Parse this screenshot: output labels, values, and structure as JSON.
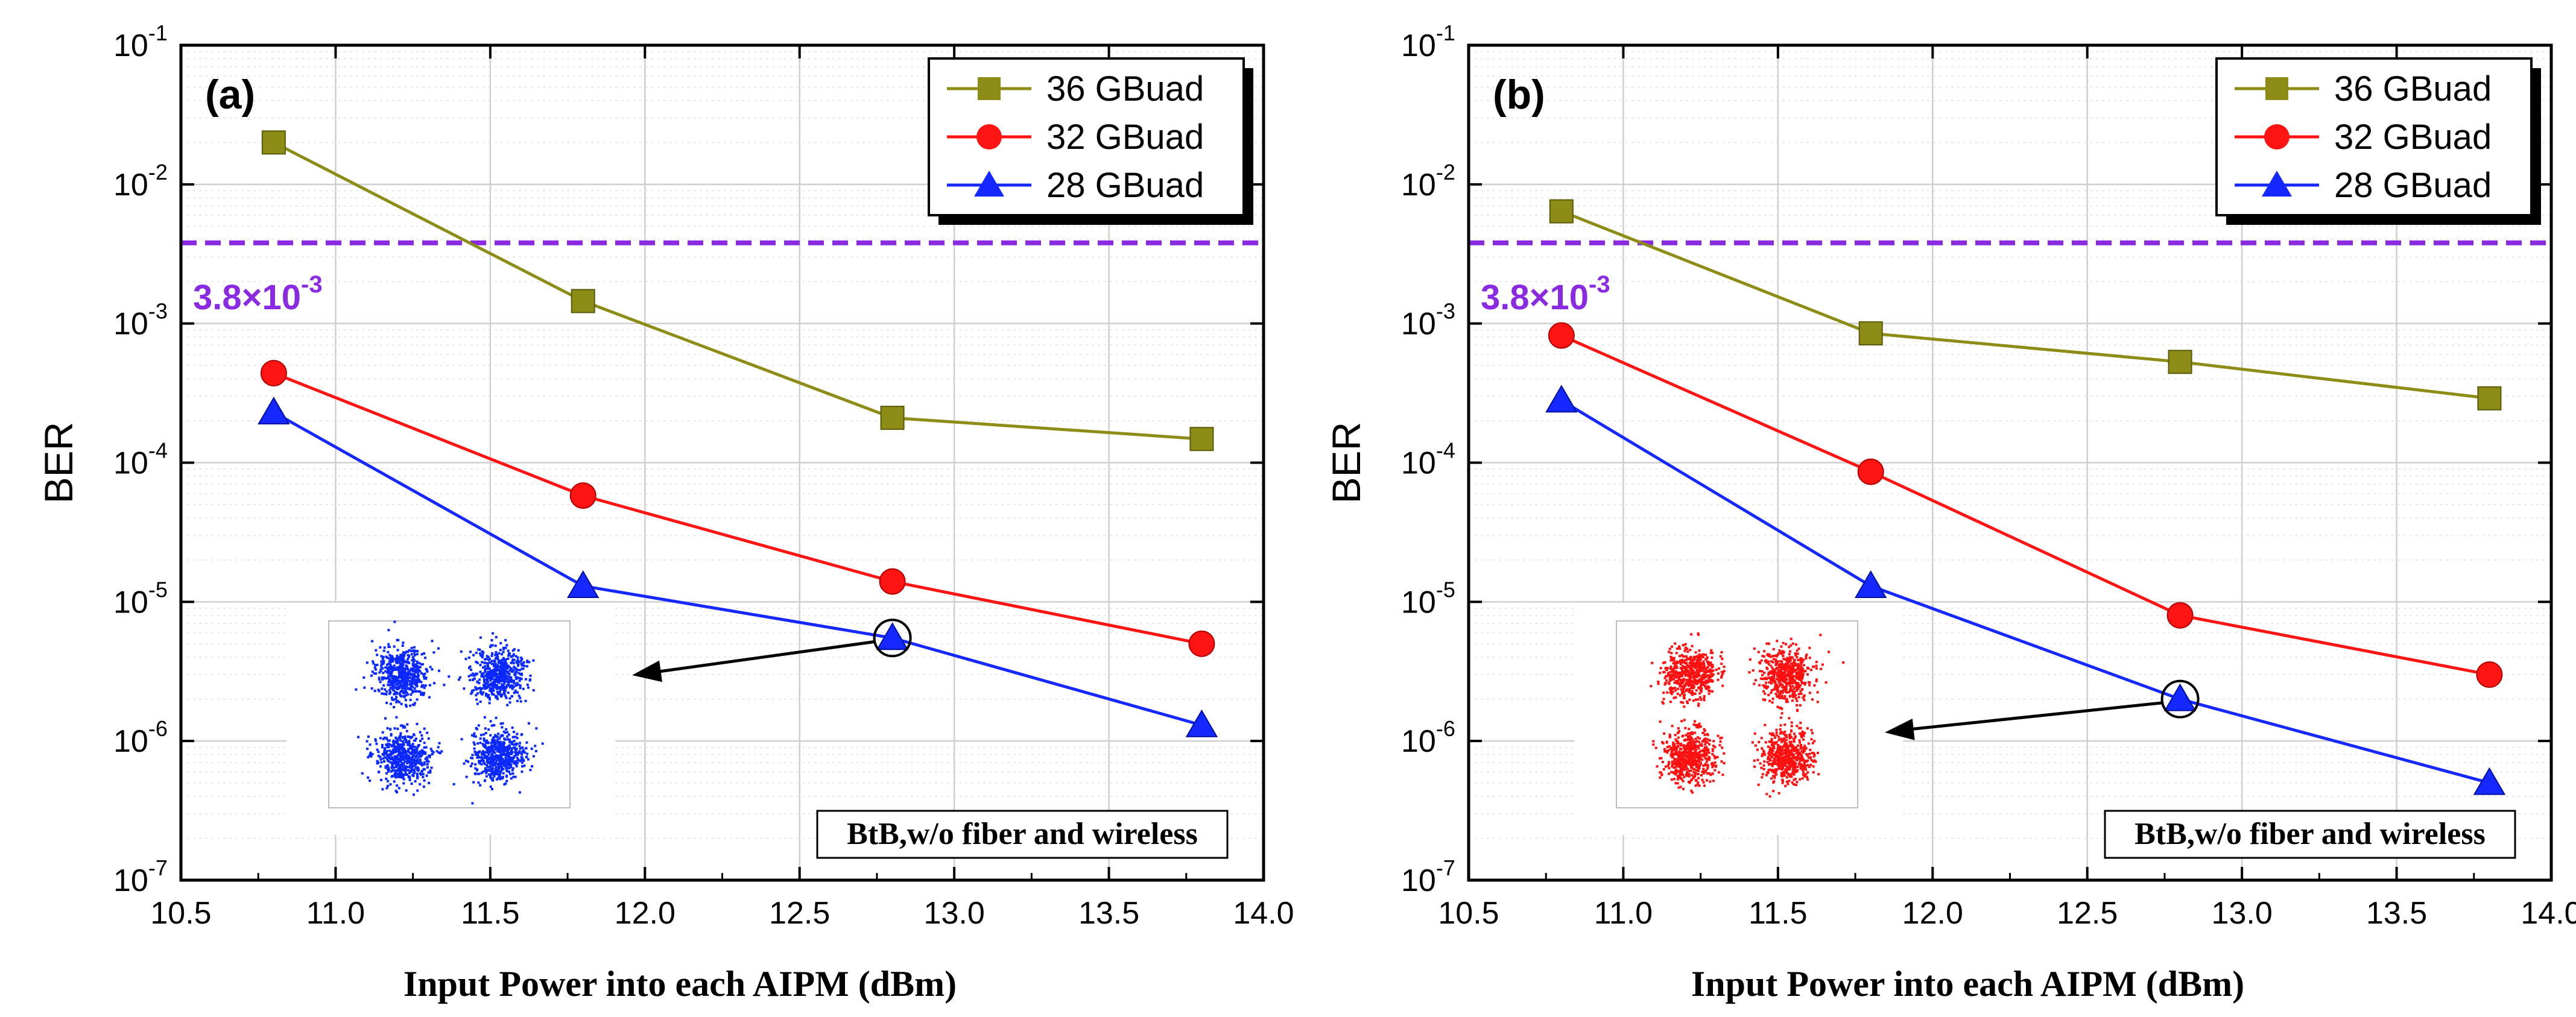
{
  "chart_data": [
    {
      "type": "line",
      "panel_label": "(a)",
      "xlabel": "Input Power into each AIPM (dBm)",
      "ylabel": "BER",
      "xlim": [
        10.5,
        14.0
      ],
      "ylim": [
        1e-07,
        0.1
      ],
      "yscale": "log",
      "xticks": [
        "10.5",
        "11.0",
        "11.5",
        "12.0",
        "12.5",
        "13.0",
        "13.5",
        "14.0"
      ],
      "yticks": [
        {
          "base": "10",
          "exp": "-7"
        },
        {
          "base": "10",
          "exp": "-6"
        },
        {
          "base": "10",
          "exp": "-5"
        },
        {
          "base": "10",
          "exp": "-4"
        },
        {
          "base": "10",
          "exp": "-3"
        },
        {
          "base": "10",
          "exp": "-2"
        },
        {
          "base": "10",
          "exp": "-1"
        }
      ],
      "grid": true,
      "legend_position": "top-right",
      "x": [
        10.8,
        11.8,
        12.8,
        13.8
      ],
      "series": [
        {
          "name": "36 GBuad",
          "marker": "square",
          "color": "#8c8c16",
          "values": [
            0.02,
            0.00145,
            0.00021,
            0.000148
          ]
        },
        {
          "name": "32 GBuad",
          "marker": "circle",
          "color": "#ff1414",
          "values": [
            0.00044,
            5.8e-05,
            1.4e-05,
            5e-06
          ]
        },
        {
          "name": "28 GBuad",
          "marker": "triangle",
          "color": "#1428ff",
          "values": [
            0.00023,
            1.3e-05,
            5.5e-06,
            1.3e-06
          ]
        }
      ],
      "threshold": {
        "value": 0.0038,
        "label_base": "3.8×10",
        "label_exp": "-3",
        "color": "#8a2be2"
      },
      "annotation_box": "BtB,w/o fiber and wireless",
      "inset": {
        "description": "constellation",
        "color": "#0a28ff",
        "points_at": {
          "x": 12.8,
          "y": 5.5e-06
        }
      }
    },
    {
      "type": "line",
      "panel_label": "(b)",
      "xlabel": "Input Power into each AIPM (dBm)",
      "ylabel": "BER",
      "xlim": [
        10.5,
        14.0
      ],
      "ylim": [
        1e-07,
        0.1
      ],
      "yscale": "log",
      "xticks": [
        "10.5",
        "11.0",
        "11.5",
        "12.0",
        "12.5",
        "13.0",
        "13.5",
        "14.0"
      ],
      "yticks": [
        {
          "base": "10",
          "exp": "-7"
        },
        {
          "base": "10",
          "exp": "-6"
        },
        {
          "base": "10",
          "exp": "-5"
        },
        {
          "base": "10",
          "exp": "-4"
        },
        {
          "base": "10",
          "exp": "-3"
        },
        {
          "base": "10",
          "exp": "-2"
        },
        {
          "base": "10",
          "exp": "-1"
        }
      ],
      "grid": true,
      "legend_position": "top-right",
      "x": [
        10.8,
        11.8,
        12.8,
        13.8
      ],
      "series": [
        {
          "name": "36 GBuad",
          "marker": "square",
          "color": "#8c8c16",
          "values": [
            0.0064,
            0.00085,
            0.00053,
            0.00029
          ]
        },
        {
          "name": "32 GBuad",
          "marker": "circle",
          "color": "#ff1414",
          "values": [
            0.00082,
            8.6e-05,
            8e-06,
            3e-06
          ]
        },
        {
          "name": "28 GBuad",
          "marker": "triangle",
          "color": "#1428ff",
          "values": [
            0.00028,
            1.3e-05,
            2e-06,
            5e-07
          ]
        }
      ],
      "threshold": {
        "value": 0.0038,
        "label_base": "3.8×10",
        "label_exp": "-3",
        "color": "#8a2be2"
      },
      "annotation_box": "BtB,w/o fiber and wireless",
      "inset": {
        "description": "constellation",
        "color": "#ff1010",
        "points_at": {
          "x": 12.8,
          "y": 2e-06
        }
      }
    }
  ]
}
